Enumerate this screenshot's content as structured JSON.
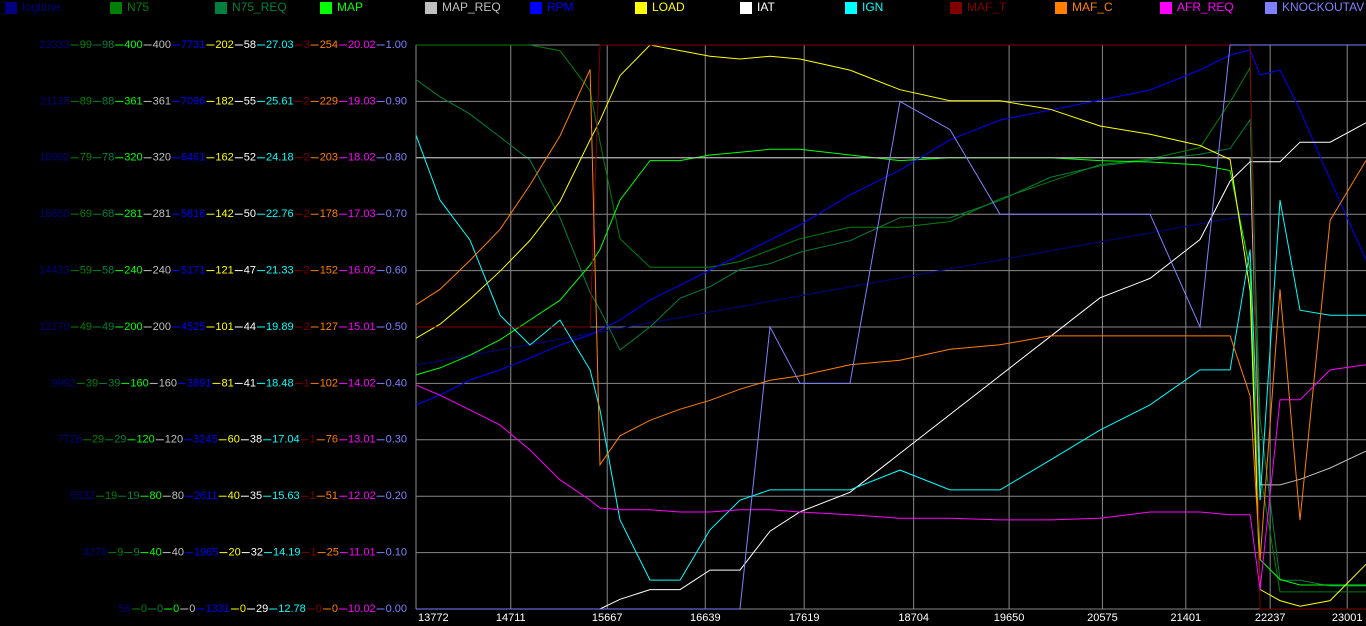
{
  "chart_data": {
    "type": "line",
    "x": [
      13772,
      14010,
      14307,
      14605,
      14902,
      15199,
      15497,
      15596,
      15794,
      16091,
      16389,
      16686,
      16983,
      17280,
      17578,
      18073,
      18569,
      19064,
      19560,
      20056,
      20551,
      21047,
      21542,
      21840,
      22038,
      22137,
      22335,
      22533,
      22831,
      23187
    ],
    "xlim": [
      13772,
      23187
    ],
    "xticks": [
      13772,
      14711,
      15667,
      16639,
      17619,
      18704,
      19650,
      20575,
      21401,
      22237,
      23001
    ],
    "grid": true,
    "series": [
      {
        "name": "logtime",
        "color": "#000080",
        "ylim": [
          56,
          23333
        ],
        "yticks": [
          56,
          3276,
          5532,
          7726,
          9992,
          12170,
          14433,
          16850,
          18992,
          21135,
          23333
        ],
        "values": [
          10126,
          10303,
          10526,
          10749,
          10972,
          11195,
          11418,
          11492,
          11641,
          11863,
          12086,
          12309,
          12532,
          12755,
          12978,
          13349,
          13721,
          14092,
          14464,
          14835,
          15206,
          15578,
          15949,
          16172,
          16321,
          null,
          null,
          null,
          null,
          null
        ]
      },
      {
        "name": "N75",
        "color": "#008000",
        "ylim": [
          0,
          99
        ],
        "yticks": [
          0,
          9,
          19,
          29,
          39,
          49,
          59,
          69,
          79,
          89,
          99
        ],
        "values": [
          99,
          99,
          99,
          99,
          99,
          98,
          91,
          82,
          65,
          60,
          60,
          60,
          61,
          63,
          65,
          67,
          67,
          68,
          72,
          75,
          78,
          79,
          81,
          89,
          95,
          24,
          3,
          3,
          3,
          3
        ]
      },
      {
        "name": "N75_REQ",
        "color": "#00803f",
        "ylim": [
          0,
          98
        ],
        "yticks": [
          0,
          9,
          19,
          29,
          39,
          49,
          58,
          68,
          78,
          88,
          98
        ],
        "values": [
          92,
          89,
          86,
          82,
          78,
          68,
          55,
          52,
          45,
          49,
          54,
          56,
          59,
          60,
          62,
          64,
          68,
          68,
          71,
          75,
          77,
          78,
          79,
          80,
          85,
          33,
          5,
          5,
          4,
          4
        ]
      },
      {
        "name": "MAP",
        "color": "#00ff00",
        "ylim": [
          0,
          400
        ],
        "yticks": [
          0,
          40,
          80,
          120,
          160,
          200,
          240,
          281,
          320,
          361,
          400
        ],
        "values": [
          166,
          171,
          180,
          191,
          205,
          219,
          244,
          255,
          290,
          318,
          318,
          322,
          324,
          326,
          326,
          322,
          318,
          320,
          320,
          320,
          318,
          317,
          315,
          311,
          240,
          35,
          21,
          17,
          17,
          17
        ]
      },
      {
        "name": "MAP_REQ",
        "color": "#c0c0c0",
        "ylim": [
          0,
          400
        ],
        "yticks": [
          0,
          40,
          80,
          120,
          160,
          200,
          240,
          281,
          320,
          361,
          400
        ],
        "values": [
          320,
          320,
          320,
          320,
          320,
          320,
          320,
          320,
          320,
          320,
          320,
          320,
          320,
          320,
          320,
          320,
          320,
          320,
          320,
          320,
          320,
          320,
          320,
          320,
          320,
          88,
          88,
          92,
          100,
          112
        ]
      },
      {
        "name": "RPM",
        "color": "#0000ff",
        "ylim": [
          1331,
          7731
        ],
        "yticks": [
          1331,
          1965,
          2611,
          3245,
          3891,
          4525,
          5171,
          5816,
          6461,
          7096,
          7731
        ],
        "values": [
          3647,
          3758,
          3930,
          4044,
          4179,
          4326,
          4441,
          4498,
          4610,
          4838,
          5005,
          5178,
          5348,
          5517,
          5689,
          6029,
          6311,
          6655,
          6879,
          6992,
          7106,
          7220,
          7447,
          7617,
          7674,
          7392,
          7447,
          6992,
          6202,
          5293
        ]
      },
      {
        "name": "LOAD",
        "color": "#ffff00",
        "ylim": [
          0,
          202
        ],
        "yticks": [
          0,
          20,
          40,
          60,
          81,
          101,
          121,
          142,
          162,
          182,
          202
        ],
        "values": [
          97,
          102,
          111,
          121,
          132,
          146,
          168,
          175,
          191,
          202,
          200,
          198,
          197,
          198,
          197,
          193,
          186,
          182,
          182,
          179,
          173,
          170,
          166,
          161,
          114,
          7,
          3,
          1,
          3,
          16
        ]
      },
      {
        "name": "IAT",
        "color": "#ffffff",
        "ylim": [
          29,
          58
        ],
        "yticks": [
          29,
          32,
          35,
          38,
          41,
          44,
          47,
          50,
          52,
          55,
          58
        ],
        "values": [
          29,
          29,
          29,
          29,
          29,
          29,
          29,
          29,
          29.5,
          30,
          30,
          31,
          31,
          33,
          34,
          35,
          37,
          39,
          41,
          43,
          45,
          46,
          48,
          51,
          52,
          52,
          52,
          53,
          53,
          54
        ]
      },
      {
        "name": "IGN",
        "color": "#00ffff",
        "ylim": [
          12.78,
          27.03
        ],
        "yticks": [
          12.78,
          14.19,
          15.63,
          17.04,
          18.48,
          19.89,
          21.33,
          22.76,
          24.18,
          25.61,
          27.03
        ],
        "values": [
          24.75,
          23.11,
          22.1,
          20.2,
          19.45,
          20.08,
          18.82,
          17.81,
          15.03,
          13.51,
          13.51,
          14.78,
          15.53,
          15.79,
          15.79,
          15.79,
          16.29,
          15.79,
          15.79,
          16.54,
          17.3,
          17.94,
          18.82,
          18.82,
          21.86,
          15.53,
          23.11,
          20.33,
          20.2,
          20.2
        ]
      },
      {
        "name": "MAF_T",
        "color": "#800000",
        "ylim": [
          0.42,
          2.62
        ],
        "yticks": [
          {
            "value": 0.42,
            "label": "0"
          },
          {
            "value": 0.64,
            "label": "1"
          },
          {
            "value": 0.86,
            "label": "1"
          },
          {
            "value": 1.08,
            "label": "1"
          },
          {
            "value": 1.3,
            "label": "1"
          },
          {
            "value": 1.52,
            "label": "2"
          },
          {
            "value": 1.74,
            "label": "2"
          },
          {
            "value": 1.96,
            "label": "2"
          },
          {
            "value": 2.18,
            "label": "2"
          },
          {
            "value": 2.4,
            "label": "2"
          },
          {
            "value": 2.62,
            "label": "3"
          }
        ],
        "values": [
          1.52,
          1.52,
          1.52,
          1.52,
          1.52,
          1.52,
          1.52,
          2.62,
          2.62,
          2.62,
          2.62,
          2.62,
          2.62,
          2.62,
          2.62,
          2.62,
          2.62,
          2.62,
          2.62,
          2.62,
          2.62,
          2.62,
          2.62,
          2.62,
          2.62,
          0.42,
          0.42,
          0.42,
          0.42,
          0.42
        ]
      },
      {
        "name": "MAF_C",
        "color": "#ff8000",
        "ylim": [
          0,
          254
        ],
        "yticks": [
          0,
          25,
          51,
          76,
          102,
          127,
          152,
          178,
          203,
          229,
          254
        ],
        "values": [
          137,
          144,
          157,
          171,
          191,
          213,
          243,
          65,
          78,
          85,
          90,
          94,
          99,
          103,
          105,
          110,
          112,
          117,
          119,
          123,
          123,
          123,
          123,
          123,
          96,
          22,
          144,
          40,
          175,
          202
        ]
      },
      {
        "name": "AFR_REQ",
        "color": "#ff00ff",
        "ylim": [
          10.02,
          20.02
        ],
        "yticks": [
          10.02,
          11.01,
          12.02,
          13.01,
          14.02,
          15.01,
          16.02,
          17.03,
          18.02,
          19.03,
          20.02
        ],
        "values": [
          13.99,
          13.81,
          13.55,
          13.28,
          12.84,
          12.31,
          11.95,
          11.81,
          11.78,
          11.78,
          11.74,
          11.74,
          11.78,
          11.78,
          11.74,
          11.69,
          11.63,
          11.63,
          11.6,
          11.6,
          11.63,
          11.74,
          11.74,
          11.69,
          11.69,
          10.36,
          13.73,
          13.73,
          14.26,
          14.35
        ]
      },
      {
        "name": "KNOCKOUTAV",
        "color": "#8080ff",
        "ylim": [
          0,
          1
        ],
        "yticks": [
          {
            "value": 0,
            "label": "0.00"
          },
          {
            "value": 0.1,
            "label": "0.10"
          },
          {
            "value": 0.2,
            "label": "0.20"
          },
          {
            "value": 0.3,
            "label": "0.30"
          },
          {
            "value": 0.4,
            "label": "0.40"
          },
          {
            "value": 0.5,
            "label": "0.50"
          },
          {
            "value": 0.6,
            "label": "0.60"
          },
          {
            "value": 0.7,
            "label": "0.70"
          },
          {
            "value": 0.8,
            "label": "0.80"
          },
          {
            "value": 0.9,
            "label": "0.90"
          },
          {
            "value": 1,
            "label": "1.00"
          }
        ],
        "values": [
          0,
          0,
          0,
          0,
          0,
          0,
          0,
          0,
          0,
          0,
          0,
          0,
          0,
          0.5,
          0.4,
          0.4,
          0.9,
          0.85,
          0.7,
          0.7,
          0.7,
          0.7,
          0.5,
          1,
          1,
          1,
          1,
          1,
          1,
          1
        ]
      }
    ]
  }
}
